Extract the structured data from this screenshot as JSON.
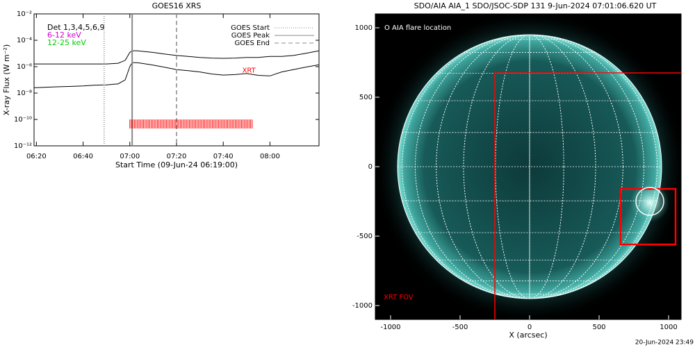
{
  "footer": "20-Jun-2024 23:49",
  "chart_data": [
    {
      "type": "line",
      "title": "GOES16 XRS",
      "xlabel": "Start Time (09-Jun-24 06:19:00)",
      "ylabel": "X-ray Flux (W m⁻²)",
      "ylog": true,
      "ylim": [
        1e-12,
        0.01
      ],
      "yticks": [
        {
          "value": 1e-12,
          "label": "10⁻¹²"
        },
        {
          "value": 1e-10,
          "label": "10⁻¹⁰"
        },
        {
          "value": 1e-08,
          "label": "10⁻⁸"
        },
        {
          "value": 1e-06,
          "label": "10⁻⁶"
        },
        {
          "value": 0.0001,
          "label": "10⁻⁴"
        },
        {
          "value": 0.01,
          "label": "10⁻²"
        }
      ],
      "xlim": [
        "06:19",
        "08:21"
      ],
      "xticks": [
        "06:20",
        "06:40",
        "07:00",
        "07:20",
        "07:40",
        "08:00"
      ],
      "x": [
        "06:19",
        "06:25",
        "06:30",
        "06:35",
        "06:40",
        "06:45",
        "06:50",
        "06:55",
        "06:58",
        "07:00",
        "07:01",
        "07:03",
        "07:05",
        "07:10",
        "07:15",
        "07:20",
        "07:25",
        "07:30",
        "07:35",
        "07:40",
        "07:45",
        "07:50",
        "07:55",
        "08:00",
        "08:05",
        "08:10",
        "08:15",
        "08:21"
      ],
      "series": [
        {
          "color": "#000000",
          "values": [
            1.6e-06,
            1.6e-06,
            1.6e-06,
            1.6e-06,
            1.6e-06,
            1.6e-06,
            1.6e-06,
            1.8e-06,
            3e-06,
            1.2e-05,
            1.6e-05,
            1.6e-05,
            1.5e-05,
            1.2e-05,
            9e-06,
            7e-06,
            6e-06,
            5e-06,
            4.5e-06,
            4.3e-06,
            4.5e-06,
            5e-06,
            5e-06,
            6e-06,
            6e-06,
            7e-06,
            1e-05,
            1.6e-05
          ]
        },
        {
          "color": "#000000",
          "values": [
            2.5e-08,
            2.8e-08,
            3e-08,
            3.2e-08,
            3.5e-08,
            4e-08,
            4.2e-08,
            5e-08,
            1e-07,
            1e-06,
            2e-06,
            2e-06,
            1.8e-06,
            1.3e-06,
            9e-07,
            6e-07,
            5e-07,
            4e-07,
            2.8e-07,
            2.3e-07,
            2.5e-07,
            3e-07,
            2.2e-07,
            2e-07,
            4e-07,
            6e-07,
            9e-07,
            1.4e-06
          ]
        }
      ],
      "legend_left": [
        {
          "text": "Det 1,3,4,5,6,9",
          "color": "#000000"
        },
        {
          "text": "6-12 keV",
          "color": "#cc00cc"
        },
        {
          "text": "12-25 keV",
          "color": "#00cc00"
        }
      ],
      "events": [
        {
          "name": "GOES Start",
          "x": "06:49",
          "style": "dotted"
        },
        {
          "name": "GOES Peak",
          "x": "07:01",
          "style": "solid"
        },
        {
          "name": "GOES End",
          "x": "07:20",
          "style": "dashed"
        }
      ],
      "xrt": {
        "start": "07:00",
        "end": "07:53",
        "y": 1e-10,
        "color": "#ff0000"
      },
      "annotations": [
        {
          "text": "XRT",
          "x": "07:51",
          "y": 5e-07,
          "color": "#ff0000"
        }
      ]
    },
    {
      "type": "image",
      "title": "SDO/AIA AIA_1 SDO/JSOC-SDP 131  9-Jun-2024 07:01:06.620 UT",
      "xlabel": "X (arcsec)",
      "xlim": [
        -1110,
        1090
      ],
      "ylim": [
        -1100,
        1100
      ],
      "xticks": [
        -1000,
        -500,
        0,
        500,
        1000
      ],
      "yticks": [
        -1000,
        -500,
        0,
        500,
        1000
      ],
      "annotations": [
        {
          "text": "O AIA flare location",
          "color": "#ffffff"
        },
        {
          "text": "XRT FOV",
          "color": "#ff0000"
        }
      ]
    }
  ]
}
